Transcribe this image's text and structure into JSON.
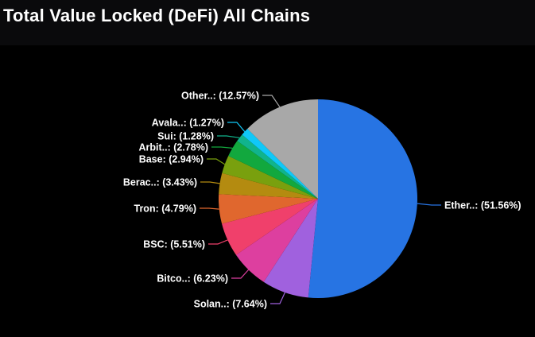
{
  "chart_data": {
    "type": "pie",
    "title": "Total Value Locked (DeFi) All Chains",
    "unit": "%",
    "label_format": "{name}: ({value}%)",
    "start_angle_deg": 0,
    "direction": "clockwise",
    "legend": "none",
    "background": "#000000",
    "header_background": "#0a0a0c",
    "text_color": "#ffffff",
    "slices": [
      {
        "name": "Ether..",
        "value": 51.56,
        "color": "#2774e3"
      },
      {
        "name": "Solan..",
        "value": 7.64,
        "color": "#a061de"
      },
      {
        "name": "Bitco..",
        "value": 6.23,
        "color": "#dd3f9f"
      },
      {
        "name": "BSC",
        "value": 5.51,
        "color": "#f0406b"
      },
      {
        "name": "Tron",
        "value": 4.79,
        "color": "#e0672e"
      },
      {
        "name": "Berac..",
        "value": 3.43,
        "color": "#b48b10"
      },
      {
        "name": "Base",
        "value": 2.94,
        "color": "#79a00e"
      },
      {
        "name": "Arbit..",
        "value": 2.78,
        "color": "#12a83e"
      },
      {
        "name": "Sui",
        "value": 1.28,
        "color": "#10b48c"
      },
      {
        "name": "Avala..",
        "value": 1.27,
        "color": "#10c8f8"
      },
      {
        "name": "Other..",
        "value": 12.57,
        "color": "#a8a8a8"
      }
    ]
  }
}
